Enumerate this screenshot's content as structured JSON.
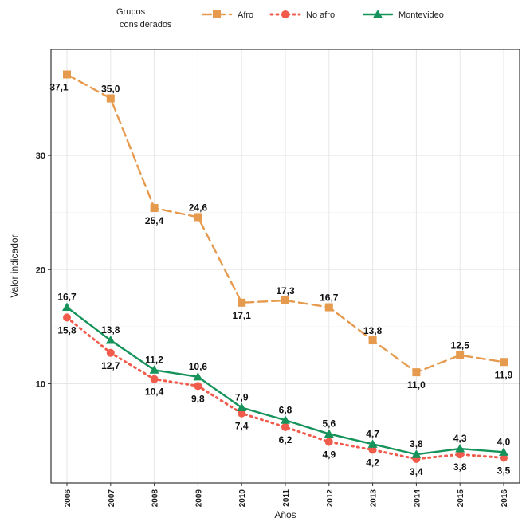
{
  "chart_data": {
    "type": "line",
    "xlabel": "Años",
    "ylabel": "Valor indicador",
    "legend_title": [
      "Grupos",
      "considerados"
    ],
    "legend_position": "top",
    "grid": true,
    "x": [
      "2006",
      "2007",
      "2008",
      "2009",
      "2010",
      "2011",
      "2012",
      "2013",
      "2014",
      "2015",
      "2016"
    ],
    "y_ticks": [
      10,
      20,
      30
    ],
    "ylim": [
      1.3,
      39.3
    ],
    "series": [
      {
        "name": "Afro",
        "color": "#E69A4E",
        "line": "dashed",
        "marker": "square",
        "values": [
          37.1,
          35.0,
          25.4,
          24.6,
          17.1,
          17.3,
          16.7,
          13.8,
          11.0,
          12.5,
          11.9
        ],
        "labels": [
          "37,1",
          "35,0",
          "25,4",
          "24,6",
          "17,1",
          "17,3",
          "16,7",
          "13,8",
          "11,0",
          "12,5",
          "11,9"
        ]
      },
      {
        "name": "No afro",
        "color": "#F15B4C",
        "line": "dotted",
        "marker": "circle",
        "values": [
          15.8,
          12.7,
          10.4,
          9.8,
          7.4,
          6.2,
          4.9,
          4.2,
          3.4,
          3.8,
          3.5
        ],
        "labels": [
          "15,8",
          "12,7",
          "10,4",
          "9,8",
          "7,4",
          "6,2",
          "4,9",
          "4,2",
          "3,4",
          "3,8",
          "3,5"
        ]
      },
      {
        "name": "Montevideo",
        "color": "#15935A",
        "line": "solid",
        "marker": "triangle",
        "values": [
          16.7,
          13.8,
          11.2,
          10.6,
          7.9,
          6.8,
          5.6,
          4.7,
          3.8,
          4.3,
          4.0
        ],
        "labels": [
          "16,7",
          "13,8",
          "11,2",
          "10,6",
          "7,9",
          "6,8",
          "5,6",
          "4,7",
          "3,8",
          "4,3",
          "4,0"
        ]
      }
    ]
  }
}
